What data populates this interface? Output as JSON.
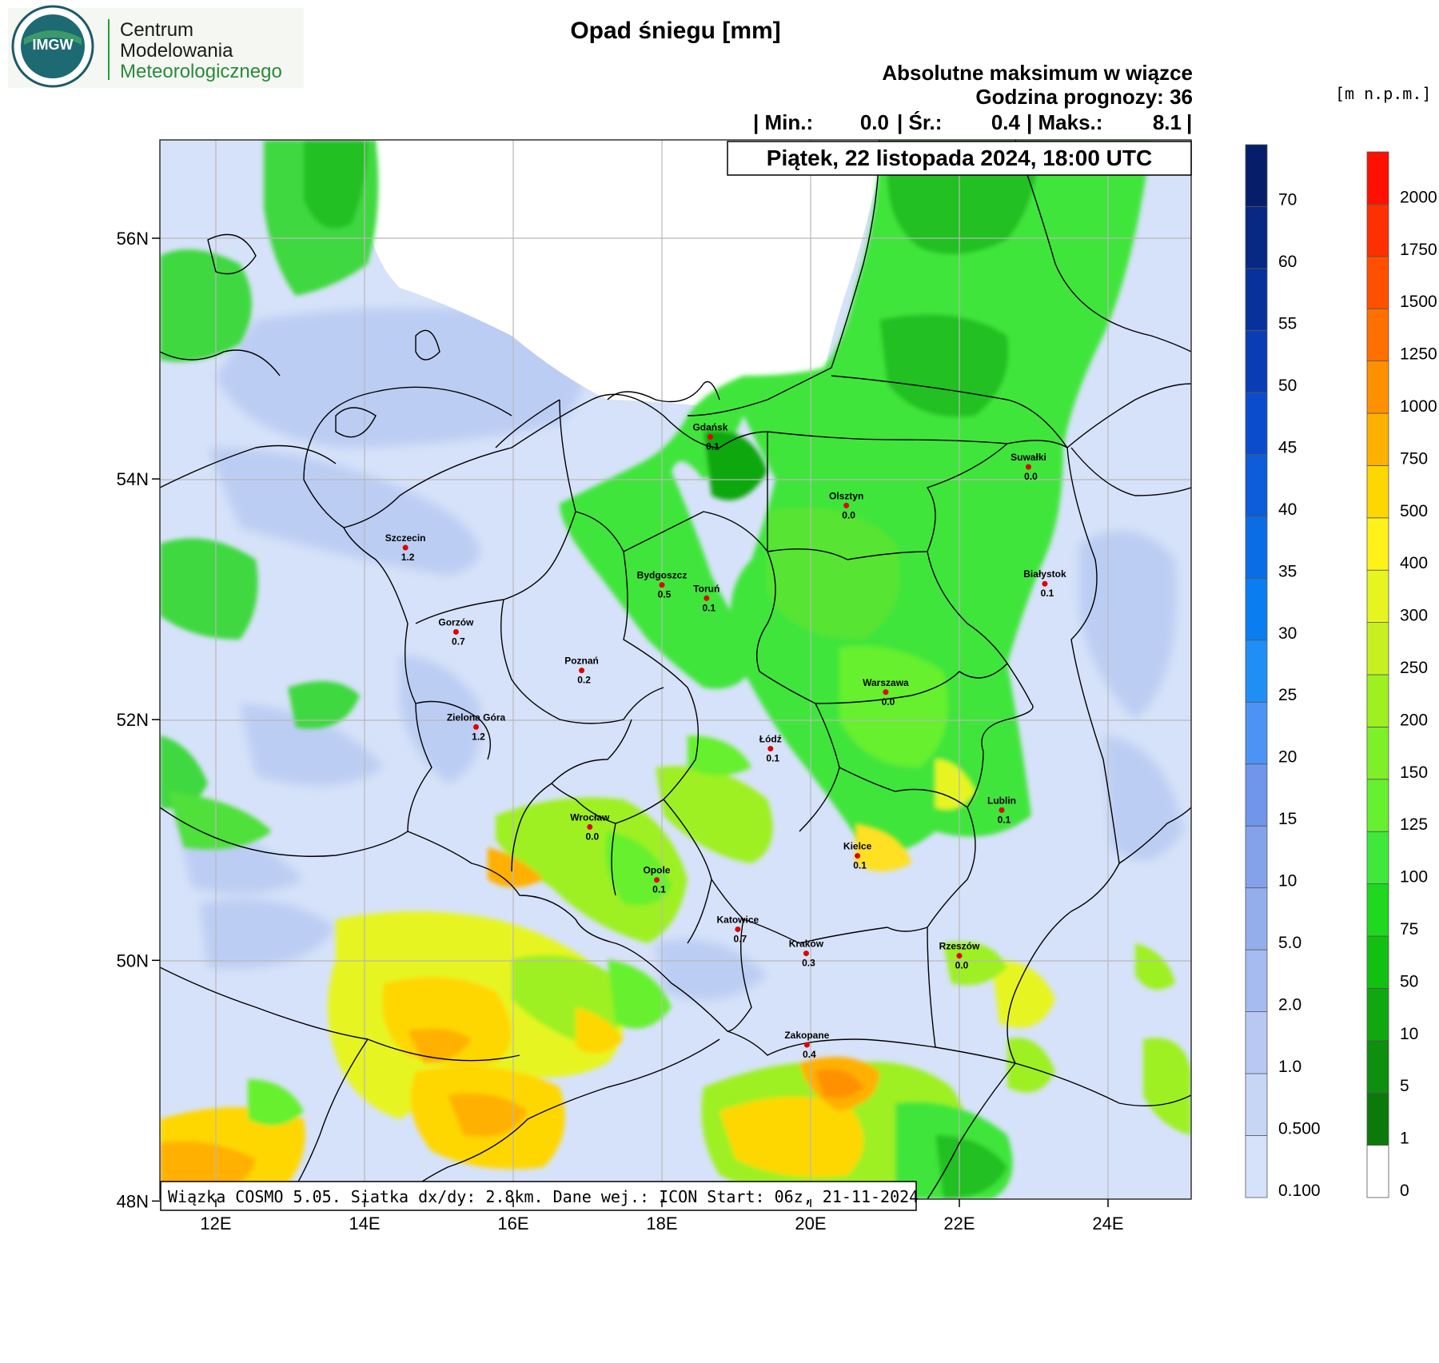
{
  "logo": {
    "text": "IMGW",
    "line1": "Centrum",
    "line2": "Modelowania",
    "line3": "Meteorologicznego"
  },
  "header": {
    "title": "Opad śniegu [mm]",
    "subtitle1": "Absolutne maksimum w wiązce",
    "subtitle2": "Godzina prognozy: 36",
    "min_label": "| Min.:",
    "min_value": "0.0",
    "avg_label": "| Śr.:",
    "avg_value": "0.4",
    "max_label": "| Maks.:",
    "max_value": "8.1",
    "end_bar": "|"
  },
  "date_box": "Piątek, 22 listopada 2024, 18:00 UTC",
  "footer_box": "Wiązka COSMO 5.05. Siatka dx/dy: 2.8km. Dane wej.: ICON Start: 06z, 21-11-2024",
  "elevation_unit": "[m n.p.m.]",
  "axes": {
    "lat_labels": [
      "56N",
      "54N",
      "52N",
      "50N",
      "48N"
    ],
    "lon_labels": [
      "12E",
      "14E",
      "16E",
      "18E",
      "20E",
      "22E",
      "24E"
    ]
  },
  "snow_legend": {
    "labels": [
      "0.100",
      "0.500",
      "1.0",
      "2.0",
      "5.0",
      "10",
      "15",
      "20",
      "25",
      "30",
      "35",
      "40",
      "45",
      "50",
      "55",
      "60",
      "70"
    ],
    "colors": [
      "#d6e2f9",
      "#c8d6f6",
      "#b8c8f2",
      "#a6bbef",
      "#94aeec",
      "#83a2ea",
      "#6f96ea",
      "#4d93f5",
      "#1f8ff5",
      "#0a7ef0",
      "#0a6de6",
      "#0d5cd9",
      "#0b4ccc",
      "#0a3cb5",
      "#08319c",
      "#072883",
      "#061e6a"
    ]
  },
  "elev_legend": {
    "labels": [
      "0",
      "1",
      "5",
      "10",
      "50",
      "75",
      "100",
      "125",
      "150",
      "200",
      "250",
      "300",
      "400",
      "500",
      "750",
      "1000",
      "1250",
      "1500",
      "1750",
      "2000"
    ],
    "colors": [
      "#ffffff",
      "#0b7a0b",
      "#0e8f0e",
      "#10a810",
      "#12c012",
      "#1fd81f",
      "#3fe83a",
      "#66f02f",
      "#7ef028",
      "#9ef020",
      "#c8f020",
      "#e6f520",
      "#fff21a",
      "#ffd700",
      "#ffb000",
      "#ff9000",
      "#ff7000",
      "#ff5000",
      "#ff3000",
      "#ff1000"
    ]
  },
  "cities": [
    {
      "name": "Gdańsk",
      "value": "0.1",
      "lon": 18.65,
      "lat": 54.35
    },
    {
      "name": "Suwałki",
      "value": "0.0",
      "lon": 22.93,
      "lat": 54.1
    },
    {
      "name": "Olsztyn",
      "value": "0.0",
      "lon": 20.48,
      "lat": 53.78
    },
    {
      "name": "Szczecin",
      "value": "1.2",
      "lon": 14.55,
      "lat": 53.43
    },
    {
      "name": "Bydgoszcz",
      "value": "0.5",
      "lon": 18.0,
      "lat": 53.12
    },
    {
      "name": "Toruń",
      "value": "0.1",
      "lon": 18.6,
      "lat": 53.01
    },
    {
      "name": "Białystok",
      "value": "0.1",
      "lon": 23.15,
      "lat": 53.13
    },
    {
      "name": "Gorzów",
      "value": "0.7",
      "lon": 15.23,
      "lat": 52.73
    },
    {
      "name": "Poznań",
      "value": "0.2",
      "lon": 16.92,
      "lat": 52.41
    },
    {
      "name": "Warszawa",
      "value": "0.0",
      "lon": 21.01,
      "lat": 52.23
    },
    {
      "name": "Zielona Góra",
      "value": "1.2",
      "lon": 15.5,
      "lat": 51.94
    },
    {
      "name": "Łódź",
      "value": "0.1",
      "lon": 19.46,
      "lat": 51.76
    },
    {
      "name": "Lublin",
      "value": "0.1",
      "lon": 22.57,
      "lat": 51.25
    },
    {
      "name": "Wrocław",
      "value": "0.0",
      "lon": 17.03,
      "lat": 51.11
    },
    {
      "name": "Kielce",
      "value": "0.1",
      "lon": 20.63,
      "lat": 50.87
    },
    {
      "name": "Opole",
      "value": "0.1",
      "lon": 17.93,
      "lat": 50.67
    },
    {
      "name": "Katowice",
      "value": "0.7",
      "lon": 19.02,
      "lat": 50.26
    },
    {
      "name": "Kraków",
      "value": "0.3",
      "lon": 19.94,
      "lat": 50.06
    },
    {
      "name": "Rzeszów",
      "value": "0.0",
      "lon": 22.0,
      "lat": 50.04
    },
    {
      "name": "Zakopane",
      "value": "0.4",
      "lon": 19.95,
      "lat": 49.3
    }
  ]
}
